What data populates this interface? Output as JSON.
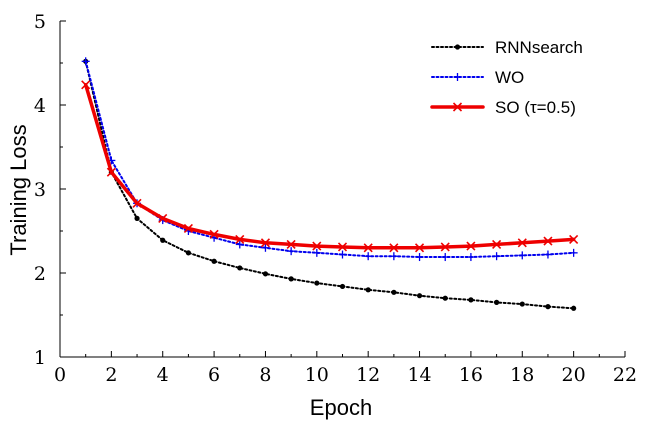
{
  "chart_data": {
    "type": "line",
    "xlabel": "Epoch",
    "ylabel": "Training Loss",
    "xlim": [
      0,
      22
    ],
    "ylim": [
      1,
      5
    ],
    "xticks": [
      "0",
      "2",
      "4",
      "6",
      "8",
      "10",
      "12",
      "14",
      "16",
      "18",
      "20",
      "22"
    ],
    "yticks": [
      "1",
      "2",
      "3",
      "4",
      "5"
    ],
    "grid": false,
    "legend_position": "top-right",
    "x": [
      1,
      2,
      3,
      4,
      5,
      6,
      7,
      8,
      9,
      10,
      11,
      12,
      13,
      14,
      15,
      16,
      17,
      18,
      19,
      20
    ],
    "series": [
      {
        "name": "RNNsearch",
        "color": "#000000",
        "line_style": "dotted",
        "marker": "dot",
        "values": [
          4.52,
          3.2,
          2.65,
          2.39,
          2.24,
          2.14,
          2.06,
          1.99,
          1.93,
          1.88,
          1.84,
          1.8,
          1.77,
          1.73,
          1.7,
          1.68,
          1.65,
          1.63,
          1.6,
          1.58
        ]
      },
      {
        "name": "WO",
        "color": "#0000ee",
        "line_style": "dotted",
        "marker": "plus",
        "values": [
          4.52,
          3.34,
          2.83,
          2.63,
          2.5,
          2.42,
          2.34,
          2.3,
          2.26,
          2.24,
          2.22,
          2.2,
          2.2,
          2.19,
          2.19,
          2.19,
          2.2,
          2.21,
          2.22,
          2.24
        ]
      },
      {
        "name": "SO (τ=0.5)",
        "color": "#ee0000",
        "line_style": "solid",
        "marker": "x",
        "values": [
          4.24,
          3.2,
          2.83,
          2.65,
          2.53,
          2.46,
          2.4,
          2.36,
          2.34,
          2.32,
          2.31,
          2.3,
          2.3,
          2.3,
          2.31,
          2.32,
          2.34,
          2.36,
          2.38,
          2.4
        ]
      }
    ]
  }
}
